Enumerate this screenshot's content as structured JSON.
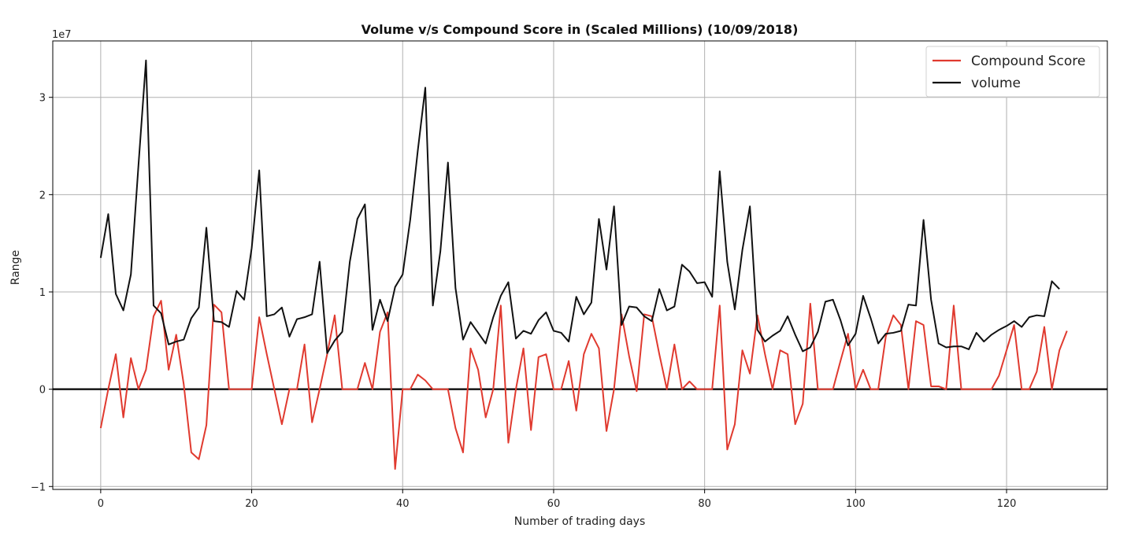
{
  "chart_data": {
    "type": "line",
    "title": "Volume v/s Compound Score in (Scaled Millions) (10/09/2018)",
    "xlabel": "Number of trading days",
    "ylabel": "Range",
    "y_offset_label": "1e7",
    "xlim": [
      -6.35,
      133.35
    ],
    "ylim": [
      -1.03,
      3.58
    ],
    "x_ticks": [
      0,
      20,
      40,
      60,
      80,
      100,
      120
    ],
    "y_ticks": [
      -1,
      0,
      1,
      2,
      3
    ],
    "x_tick_labels": [
      "0",
      "20",
      "40",
      "60",
      "80",
      "100",
      "120"
    ],
    "y_tick_labels": [
      "−1",
      "0",
      "1",
      "2",
      "3"
    ],
    "grid": true,
    "legend_position": "top-right",
    "hline": {
      "y": 0,
      "color": "#000000"
    },
    "series": [
      {
        "name": "Compound Score",
        "color": "#e03a2f",
        "values": [
          -0.4,
          0.0,
          0.36,
          -0.29,
          0.32,
          0.0,
          0.2,
          0.75,
          0.91,
          0.2,
          0.56,
          0.05,
          -0.65,
          -0.72,
          -0.37,
          0.87,
          0.79,
          0.0,
          0.0,
          0.0,
          0.0,
          0.74,
          0.36,
          0.0,
          -0.36,
          0.0,
          0.0,
          0.46,
          -0.34,
          0.0,
          0.36,
          0.76,
          0.0,
          0.0,
          0.0,
          0.27,
          0.0,
          0.59,
          0.79,
          -0.82,
          0.0,
          0.0,
          0.15,
          0.09,
          0.0,
          0.0,
          0.0,
          -0.4,
          -0.65,
          0.42,
          0.2,
          -0.29,
          0.0,
          0.86,
          -0.55,
          0.0,
          0.42,
          -0.42,
          0.33,
          0.36,
          0.0,
          0.0,
          0.29,
          -0.22,
          0.36,
          0.57,
          0.42,
          -0.43,
          0.0,
          0.77,
          0.34,
          -0.02,
          0.77,
          0.75,
          0.36,
          0.0,
          0.46,
          0.0,
          0.08,
          0.0,
          0.0,
          0.0,
          0.86,
          -0.62,
          -0.36,
          0.4,
          0.16,
          0.76,
          0.36,
          0.0,
          0.4,
          0.36,
          -0.36,
          -0.15,
          0.88,
          0.0,
          0.0,
          0.0,
          0.29,
          0.57,
          0.0,
          0.2,
          0.0,
          0.0,
          0.54,
          0.76,
          0.66,
          0.0,
          0.7,
          0.66,
          0.03,
          0.03,
          0.0,
          0.86,
          0.0,
          0.0,
          0.0,
          0.0,
          0.0,
          0.14,
          0.4,
          0.66,
          0.0,
          0.0,
          0.18,
          0.64,
          0.0,
          0.4,
          0.6
        ]
      },
      {
        "name": "volume",
        "color": "#111111",
        "values": [
          1.35,
          1.8,
          0.98,
          0.81,
          1.18,
          2.3,
          3.38,
          0.86,
          0.78,
          0.46,
          0.49,
          0.51,
          0.73,
          0.84,
          1.66,
          0.7,
          0.69,
          0.64,
          1.01,
          0.92,
          1.45,
          2.25,
          0.75,
          0.77,
          0.84,
          0.54,
          0.72,
          0.74,
          0.77,
          1.31,
          0.37,
          0.5,
          0.59,
          1.31,
          1.75,
          1.9,
          0.61,
          0.92,
          0.7,
          1.05,
          1.18,
          1.74,
          2.45,
          3.1,
          0.86,
          1.42,
          2.33,
          1.04,
          0.51,
          0.69,
          0.58,
          0.47,
          0.74,
          0.96,
          1.1,
          0.52,
          0.6,
          0.57,
          0.71,
          0.79,
          0.6,
          0.58,
          0.49,
          0.95,
          0.77,
          0.89,
          1.75,
          1.23,
          1.88,
          0.66,
          0.85,
          0.84,
          0.75,
          0.7,
          1.03,
          0.81,
          0.85,
          1.28,
          1.21,
          1.09,
          1.1,
          0.95,
          2.24,
          1.31,
          0.82,
          1.43,
          1.88,
          0.61,
          0.49,
          0.55,
          0.6,
          0.75,
          0.56,
          0.39,
          0.43,
          0.59,
          0.9,
          0.92,
          0.71,
          0.45,
          0.57,
          0.96,
          0.73,
          0.47,
          0.57,
          0.58,
          0.6,
          0.87,
          0.86,
          1.74,
          0.92,
          0.47,
          0.43,
          0.44,
          0.44,
          0.41,
          0.58,
          0.49,
          0.56,
          0.61,
          0.65,
          0.7,
          0.64,
          0.74,
          0.76,
          0.75,
          1.11,
          1.03
        ]
      }
    ]
  }
}
